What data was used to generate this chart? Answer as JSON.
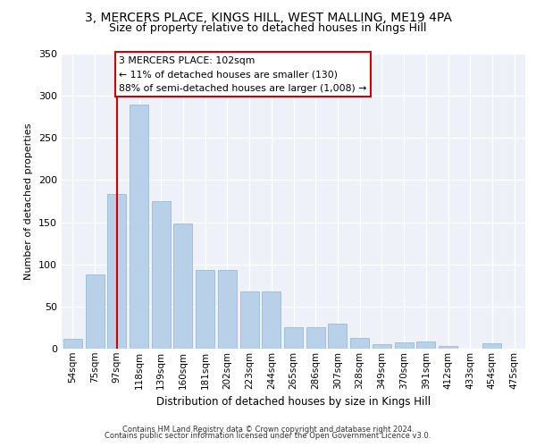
{
  "title1": "3, MERCERS PLACE, KINGS HILL, WEST MALLING, ME19 4PA",
  "title2": "Size of property relative to detached houses in Kings Hill",
  "xlabel": "Distribution of detached houses by size in Kings Hill",
  "ylabel": "Number of detached properties",
  "categories": [
    "54sqm",
    "75sqm",
    "97sqm",
    "118sqm",
    "139sqm",
    "160sqm",
    "181sqm",
    "202sqm",
    "223sqm",
    "244sqm",
    "265sqm",
    "286sqm",
    "307sqm",
    "328sqm",
    "349sqm",
    "370sqm",
    "391sqm",
    "412sqm",
    "433sqm",
    "454sqm",
    "475sqm"
  ],
  "values": [
    12,
    88,
    183,
    290,
    175,
    148,
    93,
    93,
    68,
    68,
    25,
    25,
    30,
    13,
    5,
    7,
    9,
    3,
    0,
    6,
    0
  ],
  "bar_color": "#b8d0e8",
  "bar_edge_color": "#8ab4d4",
  "vline_x": 2.0,
  "vline_color": "#cc0000",
  "annotation_text": "3 MERCERS PLACE: 102sqm\n← 11% of detached houses are smaller (130)\n88% of semi-detached houses are larger (1,008) →",
  "annotation_box_color": "white",
  "annotation_box_edge": "#cc0000",
  "ylim": [
    0,
    350
  ],
  "yticks": [
    0,
    50,
    100,
    150,
    200,
    250,
    300,
    350
  ],
  "footer1": "Contains HM Land Registry data © Crown copyright and database right 2024.",
  "footer2": "Contains public sector information licensed under the Open Government Licence v3.0.",
  "bg_color": "#eef2f8",
  "title1_fontsize": 10,
  "title2_fontsize": 9,
  "ylabel_fontsize": 8,
  "xlabel_fontsize": 8.5
}
